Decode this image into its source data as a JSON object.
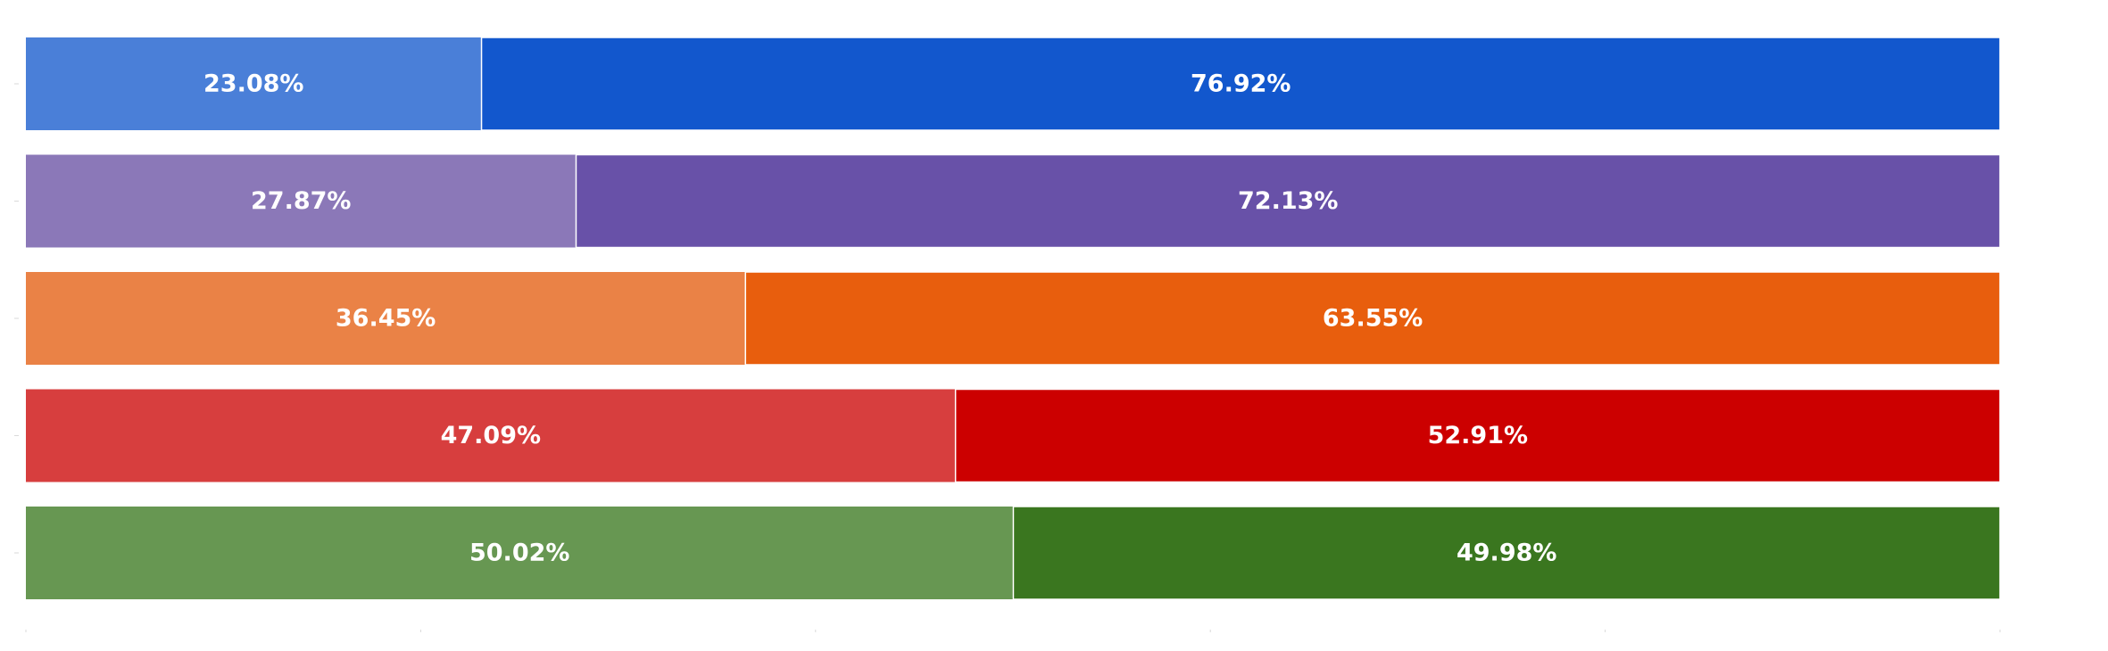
{
  "chart_data": {
    "type": "bar",
    "orientation": "horizontal",
    "stacked": true,
    "normalized": true,
    "title": "",
    "xlabel": "",
    "ylabel": "",
    "xlim": [
      0,
      100
    ],
    "grid": false,
    "legend": "none",
    "rows": [
      {
        "values": [
          23.08,
          76.92
        ],
        "labels": [
          "23.08%",
          "76.92%"
        ],
        "colors": [
          "#4a7fd8",
          "#1257cd"
        ]
      },
      {
        "values": [
          27.87,
          72.13
        ],
        "labels": [
          "27.87%",
          "72.13%"
        ],
        "colors": [
          "#8b78b8",
          "#6851a8"
        ]
      },
      {
        "values": [
          36.45,
          63.55
        ],
        "labels": [
          "36.45%",
          "63.55%"
        ],
        "colors": [
          "#ea8246",
          "#e85e0d"
        ]
      },
      {
        "values": [
          47.09,
          52.91
        ],
        "labels": [
          "47.09%",
          "52.91%"
        ],
        "colors": [
          "#d73e3e",
          "#cc0000"
        ]
      },
      {
        "values": [
          50.02,
          49.98
        ],
        "labels": [
          "50.02%",
          "49.98%"
        ],
        "colors": [
          "#679752",
          "#3a761f"
        ]
      }
    ]
  }
}
